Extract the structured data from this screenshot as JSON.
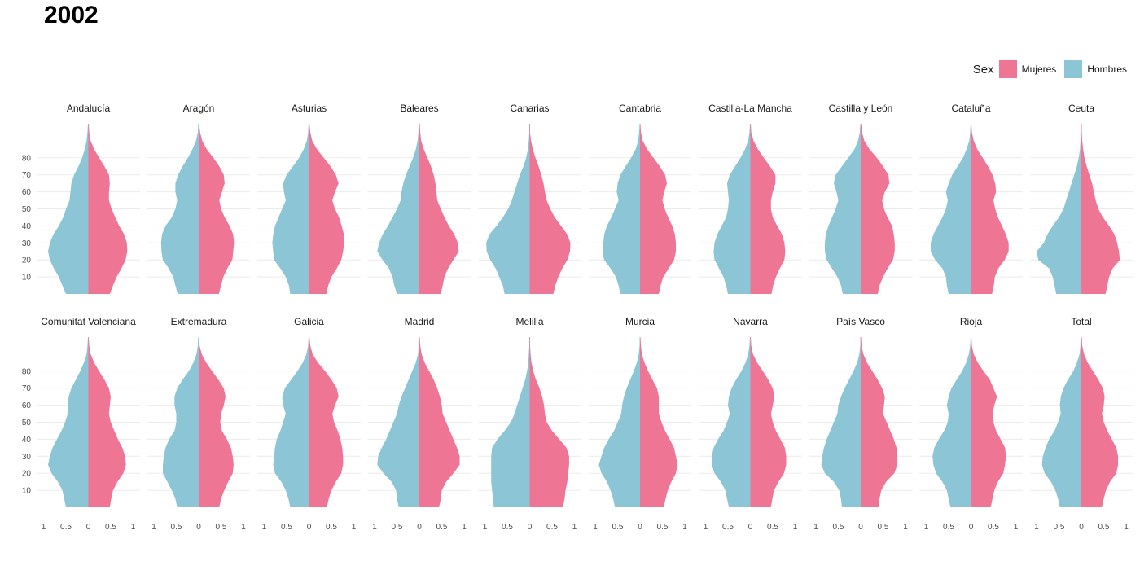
{
  "title": "2002",
  "legend": {
    "title": "Sex",
    "entries": [
      {
        "name": "Mujeres",
        "color": "#EE7594"
      },
      {
        "name": "Hombres",
        "color": "#8CC5D6"
      }
    ]
  },
  "chart_data": {
    "type": "area",
    "title": "2002",
    "xlabel": "",
    "ylabel": "",
    "y_ticks": [
      10,
      20,
      30,
      40,
      50,
      60,
      70,
      80
    ],
    "x_ticks": [
      -1,
      -0.5,
      0,
      0.5,
      1
    ],
    "x_tick_labels": [
      "1",
      "0.5",
      "0",
      "0.5",
      "1"
    ],
    "xlim": [
      -1,
      1
    ],
    "ylim": [
      0,
      100
    ],
    "grid": "horizontal",
    "legend_position": "top-right",
    "age": [
      0,
      5,
      10,
      15,
      20,
      25,
      30,
      35,
      40,
      45,
      50,
      55,
      60,
      65,
      70,
      75,
      80,
      85,
      90,
      95,
      100
    ],
    "panels": [
      {
        "name": "Andalucía",
        "hombres": [
          0.5,
          0.58,
          0.66,
          0.77,
          0.86,
          0.9,
          0.86,
          0.78,
          0.66,
          0.56,
          0.5,
          0.42,
          0.4,
          0.38,
          0.32,
          0.22,
          0.14,
          0.08,
          0.04,
          0.02,
          0.01
        ],
        "mujeres": [
          0.48,
          0.55,
          0.63,
          0.74,
          0.83,
          0.87,
          0.86,
          0.8,
          0.69,
          0.6,
          0.52,
          0.46,
          0.46,
          0.48,
          0.46,
          0.36,
          0.24,
          0.13,
          0.05,
          0.02,
          0.01
        ]
      },
      {
        "name": "Aragón",
        "hombres": [
          0.47,
          0.52,
          0.57,
          0.67,
          0.8,
          0.83,
          0.84,
          0.82,
          0.74,
          0.6,
          0.52,
          0.48,
          0.52,
          0.52,
          0.46,
          0.36,
          0.24,
          0.14,
          0.06,
          0.02,
          0.01
        ],
        "mujeres": [
          0.45,
          0.5,
          0.55,
          0.64,
          0.75,
          0.77,
          0.79,
          0.77,
          0.69,
          0.58,
          0.5,
          0.46,
          0.52,
          0.58,
          0.56,
          0.46,
          0.33,
          0.18,
          0.08,
          0.03,
          0.01
        ]
      },
      {
        "name": "Asturias",
        "hombres": [
          0.42,
          0.45,
          0.52,
          0.64,
          0.78,
          0.8,
          0.82,
          0.8,
          0.76,
          0.68,
          0.6,
          0.52,
          0.56,
          0.58,
          0.5,
          0.36,
          0.22,
          0.12,
          0.05,
          0.02,
          0.01
        ],
        "mujeres": [
          0.39,
          0.43,
          0.5,
          0.62,
          0.72,
          0.76,
          0.79,
          0.78,
          0.73,
          0.67,
          0.58,
          0.52,
          0.58,
          0.66,
          0.6,
          0.48,
          0.33,
          0.18,
          0.07,
          0.03,
          0.01
        ]
      },
      {
        "name": "Baleares",
        "hombres": [
          0.5,
          0.56,
          0.6,
          0.68,
          0.82,
          0.94,
          0.9,
          0.82,
          0.7,
          0.6,
          0.5,
          0.42,
          0.4,
          0.36,
          0.3,
          0.22,
          0.14,
          0.08,
          0.04,
          0.02,
          0.01
        ],
        "mujeres": [
          0.48,
          0.52,
          0.56,
          0.64,
          0.76,
          0.88,
          0.86,
          0.78,
          0.66,
          0.56,
          0.48,
          0.4,
          0.38,
          0.36,
          0.32,
          0.26,
          0.18,
          0.1,
          0.04,
          0.02,
          0.01
        ]
      },
      {
        "name": "Canarias",
        "hombres": [
          0.56,
          0.6,
          0.68,
          0.76,
          0.88,
          0.96,
          0.97,
          0.9,
          0.74,
          0.6,
          0.48,
          0.4,
          0.34,
          0.28,
          0.22,
          0.14,
          0.08,
          0.04,
          0.02,
          0.01,
          0.01
        ],
        "mujeres": [
          0.53,
          0.57,
          0.64,
          0.73,
          0.84,
          0.9,
          0.91,
          0.84,
          0.7,
          0.56,
          0.46,
          0.38,
          0.34,
          0.31,
          0.26,
          0.2,
          0.13,
          0.07,
          0.03,
          0.01,
          0.01
        ]
      },
      {
        "name": "Cantabria",
        "hombres": [
          0.44,
          0.48,
          0.54,
          0.66,
          0.8,
          0.84,
          0.82,
          0.8,
          0.74,
          0.64,
          0.56,
          0.48,
          0.52,
          0.5,
          0.44,
          0.32,
          0.2,
          0.1,
          0.04,
          0.02,
          0.01
        ],
        "mujeres": [
          0.42,
          0.46,
          0.52,
          0.64,
          0.76,
          0.8,
          0.8,
          0.78,
          0.72,
          0.63,
          0.55,
          0.5,
          0.54,
          0.6,
          0.56,
          0.44,
          0.3,
          0.16,
          0.06,
          0.02,
          0.01
        ]
      },
      {
        "name": "Castilla-La Mancha",
        "hombres": [
          0.5,
          0.54,
          0.6,
          0.7,
          0.8,
          0.82,
          0.8,
          0.74,
          0.64,
          0.54,
          0.5,
          0.48,
          0.5,
          0.52,
          0.46,
          0.34,
          0.22,
          0.12,
          0.05,
          0.02,
          0.01
        ],
        "mujeres": [
          0.47,
          0.51,
          0.57,
          0.66,
          0.76,
          0.78,
          0.76,
          0.71,
          0.6,
          0.5,
          0.46,
          0.46,
          0.5,
          0.56,
          0.56,
          0.44,
          0.3,
          0.17,
          0.07,
          0.02,
          0.01
        ]
      },
      {
        "name": "Castilla y León",
        "hombres": [
          0.4,
          0.44,
          0.52,
          0.64,
          0.76,
          0.8,
          0.8,
          0.78,
          0.72,
          0.64,
          0.56,
          0.5,
          0.54,
          0.6,
          0.56,
          0.42,
          0.28,
          0.14,
          0.06,
          0.02,
          0.01
        ],
        "mujeres": [
          0.38,
          0.42,
          0.5,
          0.6,
          0.72,
          0.76,
          0.76,
          0.74,
          0.7,
          0.6,
          0.52,
          0.48,
          0.54,
          0.64,
          0.62,
          0.5,
          0.36,
          0.2,
          0.08,
          0.03,
          0.01
        ]
      },
      {
        "name": "Cataluña",
        "hombres": [
          0.5,
          0.54,
          0.56,
          0.64,
          0.8,
          0.9,
          0.9,
          0.84,
          0.74,
          0.64,
          0.56,
          0.52,
          0.56,
          0.5,
          0.42,
          0.3,
          0.18,
          0.1,
          0.04,
          0.02,
          0.01
        ],
        "mujeres": [
          0.47,
          0.51,
          0.53,
          0.61,
          0.75,
          0.84,
          0.84,
          0.78,
          0.69,
          0.6,
          0.54,
          0.5,
          0.56,
          0.54,
          0.48,
          0.38,
          0.26,
          0.14,
          0.06,
          0.02,
          0.01
        ]
      },
      {
        "name": "Ceuta",
        "hombres": [
          0.56,
          0.6,
          0.64,
          0.72,
          0.96,
          1.0,
          0.84,
          0.76,
          0.64,
          0.5,
          0.4,
          0.34,
          0.28,
          0.22,
          0.16,
          0.1,
          0.06,
          0.03,
          0.02,
          0.01,
          0.01
        ],
        "mujeres": [
          0.54,
          0.58,
          0.62,
          0.7,
          0.86,
          0.84,
          0.8,
          0.74,
          0.62,
          0.48,
          0.38,
          0.32,
          0.28,
          0.24,
          0.18,
          0.12,
          0.07,
          0.04,
          0.02,
          0.01,
          0.01
        ]
      },
      {
        "name": "Comunitat Valenciana",
        "hombres": [
          0.5,
          0.54,
          0.58,
          0.68,
          0.82,
          0.9,
          0.86,
          0.8,
          0.7,
          0.6,
          0.52,
          0.46,
          0.46,
          0.44,
          0.38,
          0.28,
          0.18,
          0.1,
          0.04,
          0.02,
          0.01
        ],
        "mujeres": [
          0.48,
          0.51,
          0.55,
          0.65,
          0.78,
          0.84,
          0.82,
          0.76,
          0.66,
          0.58,
          0.5,
          0.46,
          0.48,
          0.5,
          0.46,
          0.36,
          0.24,
          0.13,
          0.05,
          0.02,
          0.01
        ]
      },
      {
        "name": "Extremadura",
        "hombres": [
          0.48,
          0.52,
          0.6,
          0.7,
          0.8,
          0.8,
          0.78,
          0.74,
          0.66,
          0.54,
          0.5,
          0.5,
          0.54,
          0.54,
          0.48,
          0.36,
          0.22,
          0.12,
          0.05,
          0.02,
          0.01
        ],
        "mujeres": [
          0.46,
          0.5,
          0.57,
          0.66,
          0.76,
          0.78,
          0.76,
          0.72,
          0.63,
          0.52,
          0.48,
          0.5,
          0.56,
          0.6,
          0.56,
          0.44,
          0.3,
          0.17,
          0.07,
          0.02,
          0.01
        ]
      },
      {
        "name": "Galicia",
        "hombres": [
          0.42,
          0.46,
          0.52,
          0.62,
          0.76,
          0.8,
          0.78,
          0.76,
          0.72,
          0.64,
          0.58,
          0.52,
          0.58,
          0.6,
          0.54,
          0.4,
          0.26,
          0.14,
          0.06,
          0.02,
          0.01
        ],
        "mujeres": [
          0.4,
          0.44,
          0.5,
          0.6,
          0.72,
          0.76,
          0.76,
          0.74,
          0.7,
          0.64,
          0.56,
          0.52,
          0.58,
          0.66,
          0.62,
          0.5,
          0.36,
          0.2,
          0.08,
          0.03,
          0.01
        ]
      },
      {
        "name": "Madrid",
        "hombres": [
          0.46,
          0.5,
          0.52,
          0.62,
          0.8,
          0.94,
          0.92,
          0.84,
          0.74,
          0.66,
          0.58,
          0.5,
          0.46,
          0.4,
          0.32,
          0.24,
          0.16,
          0.08,
          0.03,
          0.01,
          0.01
        ],
        "mujeres": [
          0.44,
          0.48,
          0.5,
          0.6,
          0.76,
          0.9,
          0.9,
          0.84,
          0.76,
          0.68,
          0.6,
          0.52,
          0.5,
          0.46,
          0.4,
          0.32,
          0.22,
          0.12,
          0.05,
          0.02,
          0.01
        ]
      },
      {
        "name": "Melilla",
        "hombres": [
          0.8,
          0.82,
          0.84,
          0.86,
          0.86,
          0.86,
          0.86,
          0.84,
          0.72,
          0.56,
          0.42,
          0.34,
          0.28,
          0.22,
          0.16,
          0.1,
          0.06,
          0.03,
          0.02,
          0.01,
          0.01
        ],
        "mujeres": [
          0.74,
          0.78,
          0.8,
          0.84,
          0.86,
          0.88,
          0.88,
          0.82,
          0.66,
          0.5,
          0.38,
          0.34,
          0.32,
          0.28,
          0.22,
          0.14,
          0.08,
          0.04,
          0.02,
          0.01,
          0.01
        ]
      },
      {
        "name": "Murcia",
        "hombres": [
          0.56,
          0.6,
          0.66,
          0.74,
          0.86,
          0.92,
          0.86,
          0.8,
          0.7,
          0.58,
          0.5,
          0.42,
          0.4,
          0.36,
          0.3,
          0.22,
          0.14,
          0.07,
          0.03,
          0.01,
          0.01
        ],
        "mujeres": [
          0.53,
          0.57,
          0.62,
          0.7,
          0.8,
          0.84,
          0.8,
          0.76,
          0.66,
          0.56,
          0.48,
          0.42,
          0.42,
          0.42,
          0.38,
          0.28,
          0.18,
          0.1,
          0.04,
          0.02,
          0.01
        ]
      },
      {
        "name": "Navarra",
        "hombres": [
          0.48,
          0.52,
          0.56,
          0.66,
          0.8,
          0.86,
          0.86,
          0.82,
          0.72,
          0.6,
          0.52,
          0.46,
          0.5,
          0.48,
          0.42,
          0.32,
          0.2,
          0.11,
          0.05,
          0.02,
          0.01
        ],
        "mujeres": [
          0.46,
          0.49,
          0.53,
          0.63,
          0.75,
          0.8,
          0.8,
          0.77,
          0.67,
          0.57,
          0.5,
          0.46,
          0.5,
          0.54,
          0.5,
          0.4,
          0.28,
          0.15,
          0.06,
          0.02,
          0.01
        ]
      },
      {
        "name": "País Vasco",
        "hombres": [
          0.42,
          0.44,
          0.48,
          0.6,
          0.8,
          0.88,
          0.86,
          0.82,
          0.76,
          0.68,
          0.6,
          0.52,
          0.5,
          0.44,
          0.36,
          0.26,
          0.16,
          0.08,
          0.03,
          0.01,
          0.01
        ],
        "mujeres": [
          0.4,
          0.42,
          0.46,
          0.57,
          0.75,
          0.82,
          0.82,
          0.8,
          0.74,
          0.66,
          0.58,
          0.5,
          0.52,
          0.54,
          0.48,
          0.38,
          0.26,
          0.14,
          0.06,
          0.02,
          0.01
        ]
      },
      {
        "name": "Rioja",
        "hombres": [
          0.46,
          0.5,
          0.54,
          0.64,
          0.78,
          0.84,
          0.86,
          0.82,
          0.72,
          0.6,
          0.52,
          0.5,
          0.54,
          0.5,
          0.44,
          0.32,
          0.2,
          0.11,
          0.05,
          0.02,
          0.01
        ],
        "mujeres": [
          0.44,
          0.48,
          0.52,
          0.6,
          0.72,
          0.76,
          0.78,
          0.76,
          0.66,
          0.56,
          0.5,
          0.48,
          0.52,
          0.58,
          0.5,
          0.42,
          0.28,
          0.15,
          0.06,
          0.02,
          0.01
        ]
      },
      {
        "name": "Total",
        "hombres": [
          0.48,
          0.52,
          0.58,
          0.68,
          0.82,
          0.88,
          0.86,
          0.8,
          0.72,
          0.6,
          0.52,
          0.46,
          0.48,
          0.46,
          0.4,
          0.3,
          0.18,
          0.1,
          0.04,
          0.02,
          0.01
        ],
        "mujeres": [
          0.46,
          0.5,
          0.55,
          0.64,
          0.78,
          0.82,
          0.82,
          0.78,
          0.68,
          0.58,
          0.5,
          0.46,
          0.5,
          0.52,
          0.48,
          0.38,
          0.26,
          0.14,
          0.06,
          0.02,
          0.01
        ]
      }
    ]
  }
}
